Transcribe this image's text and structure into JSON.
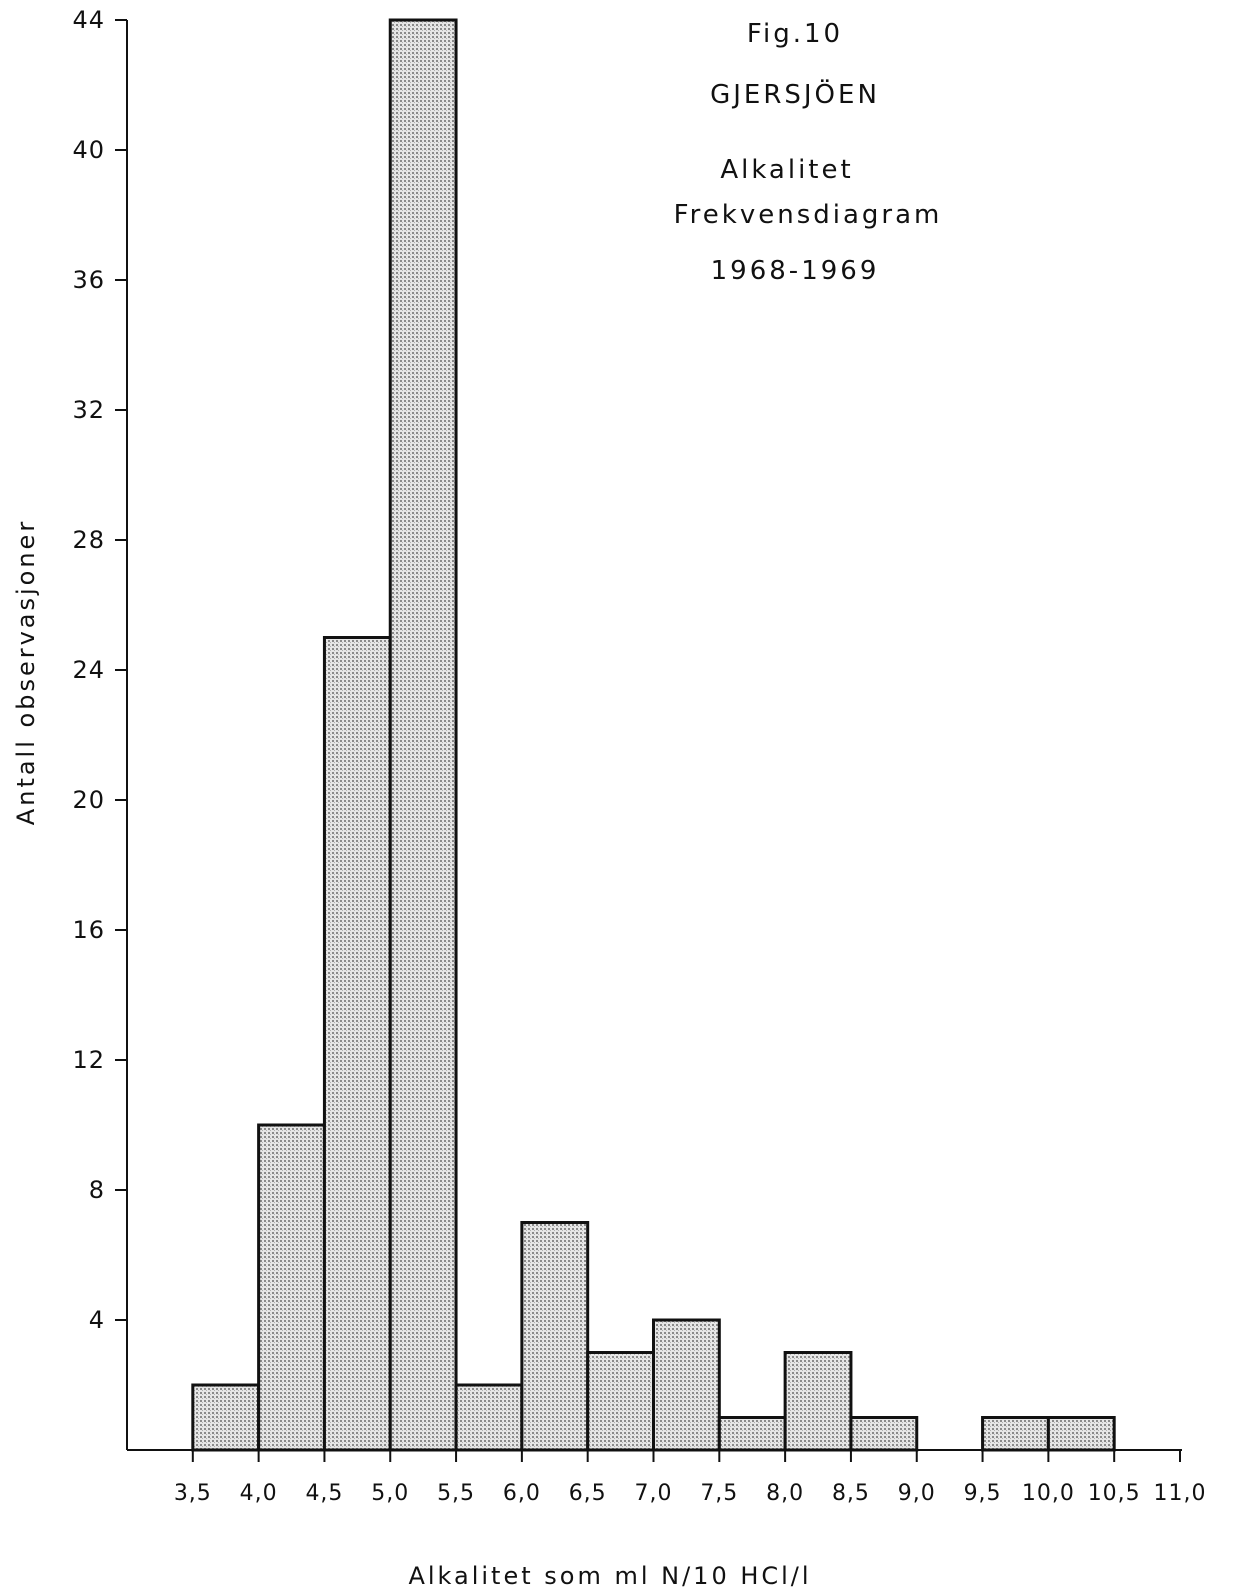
{
  "chart_data": {
    "type": "bar",
    "title_lines": [
      "Fig.10",
      "GJERSJÖEN",
      "Alkalitet",
      "Frekvensdiagram",
      "1968-1969"
    ],
    "xlabel": "Alkalitet som ml N/10 HCl/l",
    "ylabel": "Antall observasjoner",
    "x_ticks": [
      "3,5",
      "4,0",
      "4,5",
      "5,0",
      "5,5",
      "6,0",
      "6,5",
      "7,0",
      "7,5",
      "8,0",
      "8,5",
      "9,0",
      "9,5",
      "10,0",
      "10,5",
      "11,0"
    ],
    "x_tick_values": [
      3.5,
      4.0,
      4.5,
      5.0,
      5.5,
      6.0,
      6.5,
      7.0,
      7.5,
      8.0,
      8.5,
      9.0,
      9.5,
      10.0,
      10.5,
      11.0
    ],
    "y_ticks": [
      4,
      8,
      12,
      16,
      20,
      24,
      28,
      32,
      36,
      40,
      44
    ],
    "xlim": [
      3.0,
      11.0
    ],
    "ylim": [
      0,
      44
    ],
    "bins": [
      {
        "x0": 3.5,
        "x1": 4.0,
        "value": 2
      },
      {
        "x0": 4.0,
        "x1": 4.5,
        "value": 10
      },
      {
        "x0": 4.5,
        "x1": 5.0,
        "value": 25
      },
      {
        "x0": 5.0,
        "x1": 5.5,
        "value": 44
      },
      {
        "x0": 5.5,
        "x1": 6.0,
        "value": 2
      },
      {
        "x0": 6.0,
        "x1": 6.5,
        "value": 7
      },
      {
        "x0": 6.5,
        "x1": 7.0,
        "value": 3
      },
      {
        "x0": 7.0,
        "x1": 7.5,
        "value": 4
      },
      {
        "x0": 7.5,
        "x1": 8.0,
        "value": 1
      },
      {
        "x0": 8.0,
        "x1": 8.5,
        "value": 3
      },
      {
        "x0": 8.5,
        "x1": 9.0,
        "value": 1
      },
      {
        "x0": 9.0,
        "x1": 9.5,
        "value": 0
      },
      {
        "x0": 9.5,
        "x1": 10.0,
        "value": 1
      },
      {
        "x0": 10.0,
        "x1": 10.5,
        "value": 1
      }
    ],
    "grid": false,
    "bar_fill": "#d4d4d4",
    "stroke_color": "#111111"
  }
}
